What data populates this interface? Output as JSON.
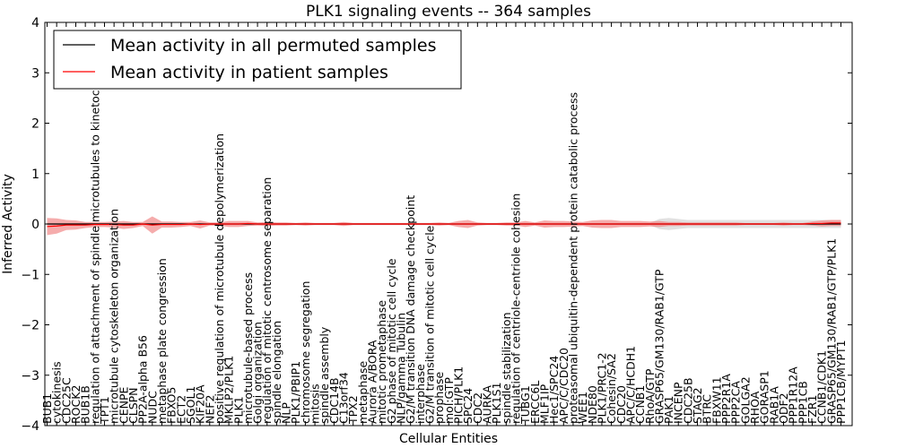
{
  "chart_data": {
    "type": "line",
    "title": "PLK1 signaling events -- 364 samples",
    "xlabel": "Cellular Entities",
    "ylabel": "Inferred Activity",
    "ylim": [
      -4,
      4
    ],
    "yticks": [
      "4",
      "3",
      "2",
      "1",
      "0",
      "−1",
      "−2",
      "−3",
      "−4"
    ],
    "ytick_values": [
      4,
      3,
      2,
      1,
      0,
      -1,
      -2,
      -3,
      -4
    ],
    "legend": {
      "placement": "top-left",
      "entries": [
        {
          "label": "Mean activity in all permuted samples",
          "color": "#000000"
        },
        {
          "label": "Mean activity in patient samples",
          "color": "#ff0000"
        }
      ]
    },
    "categories": [
      "BUB1",
      "cytokinesis",
      "CDC25C",
      "ROCK2",
      "BUB1B",
      "regulation of attachment of spindle microtubules to kinetochore",
      "TPT1",
      "microtubule cytoskeleton organization",
      "CENPE",
      "CLSPN",
      "PP2A-alpha B56",
      "NUDC",
      "metaphase plate congression",
      "FBXO5",
      "ECT2",
      "SGOL1",
      "KIF20A",
      "NEF2",
      "positive regulation of microtubule depolymerization",
      "MKLP2/PLK1",
      "PLK1",
      "microtubule-based process",
      "Golgi organization",
      "regulation of mitotic centrosome separation",
      "spindle elongation",
      "NLP",
      "PLK1/PBIP1",
      "chromosome segregation",
      "mitosis",
      "spindle assembly",
      "CDC14B",
      "C13orf34",
      "TPX2",
      "metaphase",
      "Aurora A/BORA",
      "mitotic prometaphase",
      "G2 phase of mitotic cell cycle",
      "NLP/gamma Tubulin",
      "G2/M transition DNA damage checkpoint",
      "interphase",
      "G2/M transition of mitotic cell cycle",
      "prophase",
      "mol:GTP",
      "PICH/PLK1",
      "SPC24",
      "CDC2",
      "AURKA",
      "PLK1S1",
      "spindle stabilization",
      "regulation of centriole-centriole cohesion",
      "TUBG1",
      "ERCC6L",
      "MLF1IP",
      "Hec1/SPC24",
      "APC/C/CDC20",
      "proteasomal ubiquitin-dependent protein catabolic process",
      "WEE1",
      "NDE80",
      "PLK1/PRC1-2",
      "Cohesin/SA2",
      "CDC20",
      "APC/C/HCDH1",
      "CCNB1",
      "RhoA/GTP",
      "GRASP65/GM130/RAB1/GTP",
      "PAK1",
      "INCENP",
      "CDC25B",
      "STAG2",
      "BTRC",
      "FBXW11",
      "PPP2R1A",
      "PPP2CA",
      "GOLGA2",
      "RHOA",
      "GORASP1",
      "RAB1A",
      "ODF2",
      "PPP1R12A",
      "PPP1CB",
      "FZR1",
      "CCNB1/CDK1",
      "GRASP65/GM130/RAB1/GTP/PLK1",
      "PPP1CB/MYPT1"
    ],
    "series": [
      {
        "name": "Mean activity in all permuted samples",
        "color": "#000000",
        "values": [
          0.0,
          0.0,
          0.0,
          0.0,
          0.0,
          0.0,
          0.0,
          0.0,
          0.0,
          0.0,
          0.0,
          0.0,
          0.0,
          0.0,
          0.0,
          0.0,
          0.0,
          0.0,
          0.0,
          0.0,
          0.0,
          0.0,
          0.0,
          0.0,
          0.0,
          0.0,
          0.0,
          0.0,
          0.0,
          0.0,
          0.0,
          0.0,
          0.0,
          0.0,
          0.0,
          0.0,
          0.0,
          0.0,
          0.0,
          0.0,
          0.0,
          0.0,
          0.0,
          0.0,
          0.0,
          0.0,
          0.0,
          0.0,
          0.0,
          0.0,
          0.0,
          0.0,
          0.0,
          0.0,
          0.0,
          0.0,
          0.0,
          0.0,
          0.0,
          0.0,
          0.0,
          0.0,
          0.0,
          0.0,
          0.0,
          0.0,
          0.0,
          0.0,
          0.0,
          0.0,
          0.0,
          0.0,
          0.0,
          0.0,
          0.0,
          0.0,
          0.0,
          0.0,
          0.0,
          0.0,
          0.0,
          0.0,
          0.0,
          0.0
        ],
        "band": [
          0.02,
          0.02,
          0.02,
          0.02,
          0.02,
          0.02,
          0.02,
          0.02,
          0.02,
          0.02,
          0.02,
          0.02,
          0.02,
          0.02,
          0.02,
          0.02,
          0.02,
          0.02,
          0.02,
          0.02,
          0.02,
          0.02,
          0.02,
          0.02,
          0.02,
          0.02,
          0.02,
          0.02,
          0.02,
          0.02,
          0.02,
          0.02,
          0.02,
          0.02,
          0.02,
          0.02,
          0.02,
          0.02,
          0.02,
          0.02,
          0.02,
          0.02,
          0.02,
          0.02,
          0.02,
          0.02,
          0.02,
          0.02,
          0.02,
          0.02,
          0.02,
          0.02,
          0.02,
          0.02,
          0.02,
          0.02,
          0.02,
          0.02,
          0.02,
          0.02,
          0.02,
          0.02,
          0.02,
          0.02,
          0.1,
          0.12,
          0.1,
          0.08,
          0.08,
          0.08,
          0.08,
          0.08,
          0.08,
          0.08,
          0.08,
          0.08,
          0.08,
          0.08,
          0.08,
          0.08,
          0.08,
          0.08,
          0.08,
          0.08
        ]
      },
      {
        "name": "Mean activity in patient samples",
        "color": "#ff0000",
        "values": [
          -0.05,
          -0.04,
          -0.02,
          -0.02,
          -0.02,
          -0.01,
          -0.01,
          -0.01,
          -0.02,
          -0.02,
          0.0,
          -0.02,
          -0.01,
          -0.01,
          -0.01,
          0.0,
          -0.01,
          0.0,
          0.0,
          0.0,
          0.0,
          0.01,
          0.0,
          0.0,
          0.0,
          0.0,
          0.0,
          0.0,
          0.0,
          0.0,
          0.0,
          0.0,
          0.0,
          0.0,
          0.0,
          0.0,
          0.0,
          0.0,
          0.0,
          0.0,
          0.0,
          0.0,
          0.0,
          0.0,
          0.0,
          0.0,
          0.0,
          0.0,
          0.0,
          0.0,
          0.0,
          0.0,
          0.0,
          0.0,
          0.0,
          0.0,
          0.0,
          0.0,
          0.0,
          0.0,
          0.0,
          0.0,
          0.0,
          0.0,
          0.0,
          0.0,
          0.0,
          0.0,
          0.0,
          0.0,
          0.0,
          0.0,
          0.0,
          0.0,
          0.0,
          0.0,
          0.0,
          0.0,
          0.0,
          0.0,
          0.01,
          0.01,
          0.02,
          0.02
        ],
        "band": [
          0.17,
          0.15,
          0.1,
          0.09,
          0.06,
          0.05,
          0.05,
          0.06,
          0.08,
          0.06,
          0.04,
          0.17,
          0.06,
          0.06,
          0.05,
          0.04,
          0.08,
          0.03,
          0.03,
          0.06,
          0.06,
          0.05,
          0.03,
          0.04,
          0.03,
          0.03,
          0.02,
          0.03,
          0.02,
          0.02,
          0.02,
          0.04,
          0.02,
          0.02,
          0.02,
          0.02,
          0.02,
          0.02,
          0.02,
          0.02,
          0.02,
          0.03,
          0.02,
          0.06,
          0.08,
          0.03,
          0.02,
          0.02,
          0.03,
          0.03,
          0.06,
          0.03,
          0.07,
          0.06,
          0.06,
          0.05,
          0.04,
          0.07,
          0.08,
          0.08,
          0.06,
          0.06,
          0.06,
          0.05,
          0.06,
          0.04,
          0.04,
          0.03,
          0.03,
          0.03,
          0.03,
          0.03,
          0.03,
          0.02,
          0.02,
          0.02,
          0.02,
          0.03,
          0.02,
          0.02,
          0.04,
          0.06,
          0.06,
          0.06
        ]
      }
    ]
  }
}
